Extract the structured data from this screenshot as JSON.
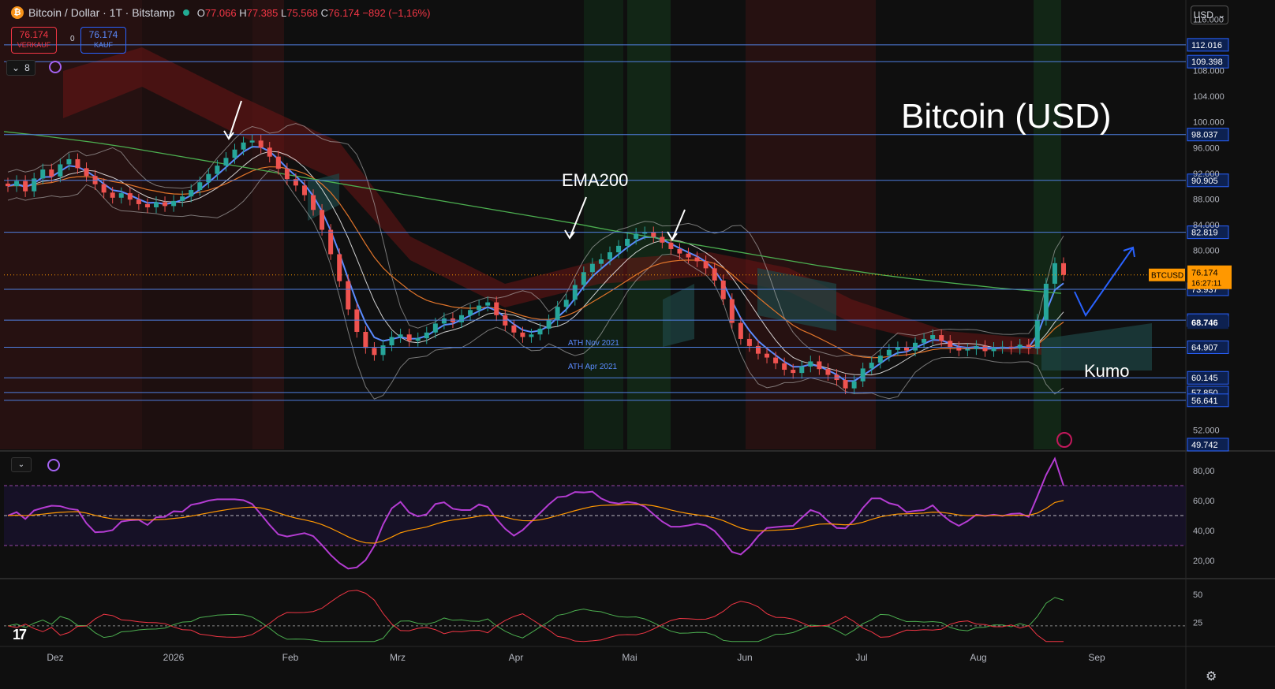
{
  "header": {
    "coin_icon": "bitcoin-icon",
    "symbol_title": "Bitcoin / Dollar · 1T · Bitstamp",
    "open_label": "O",
    "open": "77.066",
    "high_label": "H",
    "high": "77.385",
    "low_label": "L",
    "low": "75.568",
    "close_label": "C",
    "close": "76.174",
    "change": "−892 (−1,16%)"
  },
  "trade": {
    "sell_price": "76.174",
    "sell_label": "VERKAUF",
    "spread": "0",
    "buy_price": "76.174",
    "buy_label": "KAUF"
  },
  "toolbar": {
    "indicators_count": "8",
    "currency": "USD",
    "currency_icon": "chevron-down-icon"
  },
  "colors": {
    "background": "#0f0f0f",
    "up": "#26a69a",
    "down": "#ef5350",
    "hline": "#4f7fe0",
    "ema200": "#4caf50",
    "bollinger": "#bdbdbd",
    "rsi": "#b43cd2",
    "rsi_ma": "#ff9800",
    "dmi_plus": "#4caf50",
    "dmi_minus": "#f23645",
    "tag_blue": "#2962ff",
    "tag_orange": "#ff9800"
  },
  "chart_data": [
    {
      "type": "candlestick",
      "title": "Bitcoin (USD)",
      "x_ticks": [
        "Dez",
        "2026",
        "Feb",
        "Mrz",
        "Apr",
        "Mai",
        "Jun",
        "Jul",
        "Aug",
        "Sep"
      ],
      "y_ticks": [
        "116.000",
        "108.000",
        "104.000",
        "100.000",
        "96.000",
        "92.000",
        "88.000",
        "84.000",
        "80.000",
        "52.000"
      ],
      "ylim": [
        49000,
        119000
      ],
      "closes": [
        90000,
        90800,
        89200,
        91200,
        92600,
        91500,
        93400,
        94200,
        92800,
        91600,
        90300,
        89000,
        88200,
        88900,
        87900,
        87200,
        86700,
        87500,
        86900,
        87700,
        88400,
        89400,
        90600,
        91900,
        93200,
        94400,
        95700,
        96800,
        97100,
        96000,
        94600,
        92700,
        91100,
        90100,
        88600,
        86300,
        83200,
        79400,
        75200,
        70800,
        67300,
        64800,
        63700,
        65200,
        66500,
        66900,
        65900,
        66300,
        67200,
        68600,
        69400,
        68800,
        69900,
        70700,
        71400,
        71900,
        69900,
        68300,
        67200,
        66500,
        66900,
        67800,
        69100,
        71200,
        72300,
        74600,
        76600,
        77900,
        78600,
        79700,
        80700,
        81800,
        82600,
        82800,
        82100,
        81200,
        80200,
        79500,
        78900,
        78300,
        77200,
        75300,
        72400,
        68700,
        66200,
        65100,
        63900,
        63300,
        62400,
        61400,
        60900,
        61900,
        62700,
        61500,
        60600,
        59800,
        58500,
        59600,
        61600,
        62500,
        63600,
        64500,
        64900,
        64400,
        65600,
        66200,
        66800,
        65900,
        64900,
        64400,
        64600,
        65100,
        64300,
        64800,
        65000,
        64700,
        65300,
        64700,
        69200,
        74800,
        78000,
        76174
      ],
      "ema200": [
        98500,
        98000,
        97400,
        96800,
        96100,
        95300,
        94500,
        93700,
        92900,
        92100,
        91300,
        90500,
        89700,
        88900,
        88100,
        87300,
        86500,
        85700,
        84900,
        84100,
        83200,
        82400,
        81600,
        80800,
        80000,
        79200,
        78400,
        77600,
        76900,
        76200,
        75600,
        75100,
        74600,
        74100,
        73700,
        73300
      ],
      "ema200_x_end": "Aug",
      "series": [
        {
          "name": "RSI",
          "y_ticks": [
            "80,00",
            "60,00",
            "40,00",
            "20,00"
          ],
          "ylim": [
            10,
            90
          ],
          "bands": [
            70,
            50,
            30
          ]
        },
        {
          "name": "DMI",
          "y_ticks": [
            "50",
            "25"
          ],
          "ylim": [
            5,
            60
          ]
        }
      ]
    }
  ],
  "price_levels": [
    {
      "label": "112.016",
      "value": 112016
    },
    {
      "label": "109.398",
      "value": 109398
    },
    {
      "label": "98.037",
      "value": 98037
    },
    {
      "label": "90.905",
      "value": 90905
    },
    {
      "label": "82.819",
      "value": 82819
    },
    {
      "label": "73.937",
      "value": 73937
    },
    {
      "label": "69.130",
      "value": 69130
    },
    {
      "label": "64.907",
      "value": 64907
    },
    {
      "label": "60.145",
      "value": 60145
    },
    {
      "label": "57.850",
      "value": 57850
    },
    {
      "label": "56.641",
      "value": 56641
    },
    {
      "label": "49.742",
      "value": 49742
    }
  ],
  "price_tag": {
    "ticker": "BTCUSD",
    "price": "76.174",
    "countdown": "16:27:11",
    "value": 76174
  },
  "ema_tag": {
    "label": "68.746",
    "value": 68746
  },
  "annotations": {
    "ema200": "EMA200",
    "ath_nov": "ATH Nov 2021",
    "ath_apr": "ATH Apr 2021",
    "kumo": "Kumo"
  },
  "footer": {
    "logo": "tradingview-logo",
    "settings_icon": "gear-icon"
  }
}
